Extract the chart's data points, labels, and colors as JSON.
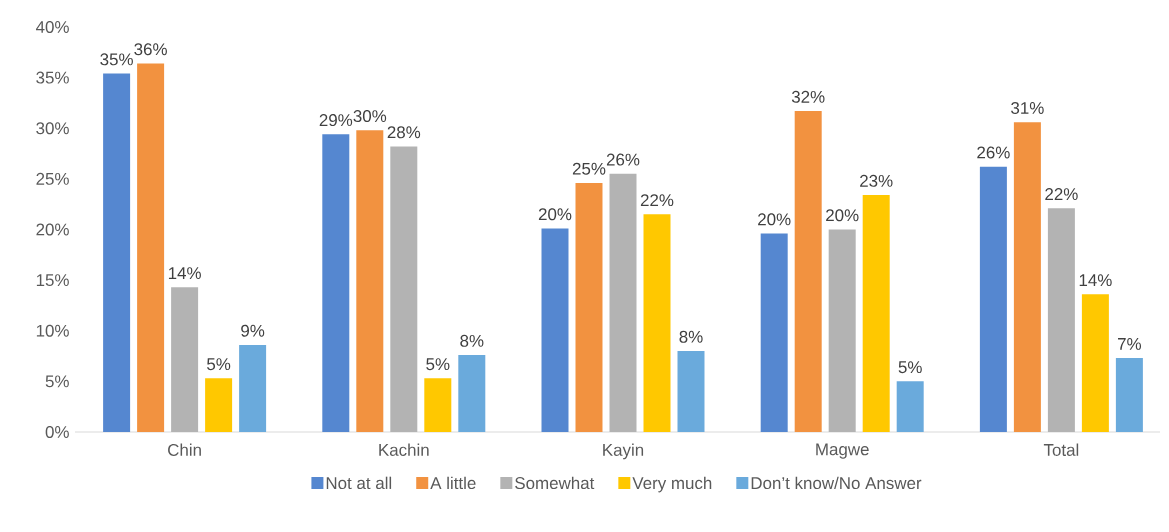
{
  "chart_data": {
    "type": "bar",
    "categories": [
      "Chin",
      "Kachin",
      "Kayin",
      "Magwe",
      "Total"
    ],
    "series": [
      {
        "name": "Not at all",
        "color": "#5587d0",
        "values": [
          35.4,
          29.4,
          20.1,
          19.6,
          26.2
        ],
        "value_labels": [
          "35%",
          "29%",
          "20%",
          "20%",
          "26%"
        ]
      },
      {
        "name": "A little",
        "color": "#f29240",
        "values": [
          36.4,
          29.8,
          24.6,
          31.7,
          30.6
        ],
        "value_labels": [
          "36%",
          "30%",
          "25%",
          "32%",
          "31%"
        ]
      },
      {
        "name": "Somewhat",
        "color": "#b3b3b3",
        "values": [
          14.3,
          28.2,
          25.5,
          20.0,
          22.1
        ],
        "value_labels": [
          "14%",
          "28%",
          "26%",
          "20%",
          "22%"
        ]
      },
      {
        "name": "Very much",
        "color": "#ffc800",
        "values": [
          5.3,
          5.3,
          21.5,
          23.4,
          13.6
        ],
        "value_labels": [
          "5%",
          "5%",
          "22%",
          "23%",
          "14%"
        ]
      },
      {
        "name": "Don’t know/No Answer",
        "color": "#6aaadc",
        "values": [
          8.6,
          7.6,
          8.0,
          5.0,
          7.3
        ],
        "value_labels": [
          "9%",
          "8%",
          "8%",
          "5%",
          "7%"
        ]
      }
    ],
    "ylim": [
      0,
      40
    ],
    "yticks": [
      {
        "value": 0,
        "label": "0%"
      },
      {
        "value": 5,
        "label": "5%"
      },
      {
        "value": 10,
        "label": "10%"
      },
      {
        "value": 15,
        "label": "15%"
      },
      {
        "value": 20,
        "label": "20%"
      },
      {
        "value": 25,
        "label": "25%"
      },
      {
        "value": 30,
        "label": "30%"
      },
      {
        "value": 35,
        "label": "35%"
      },
      {
        "value": 40,
        "label": "40%"
      }
    ],
    "legend": "bottom"
  }
}
